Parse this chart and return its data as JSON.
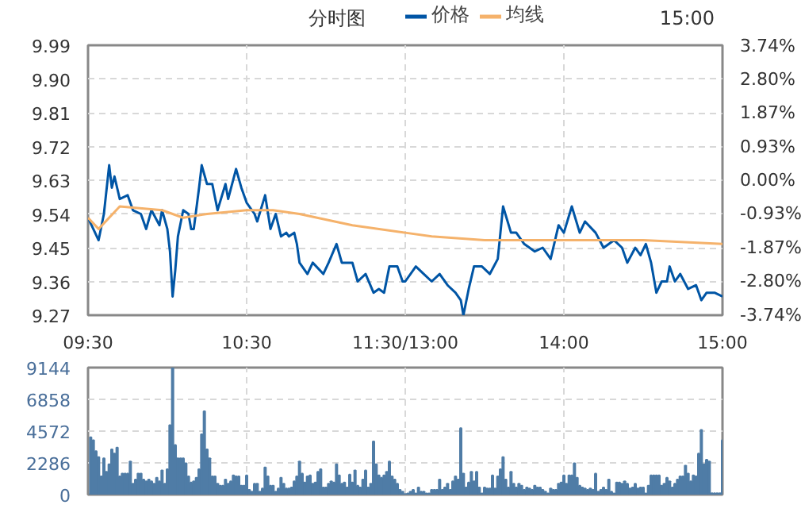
{
  "chart_data": [
    {
      "type": "line",
      "title": "分时图",
      "annotations": [
        "15:00"
      ],
      "legend": "top",
      "grid": true,
      "line_style": "solid",
      "marker": "none",
      "categories": [
        "09:30",
        null,
        null,
        null,
        null,
        null,
        null,
        null,
        null,
        null,
        null,
        null,
        null,
        null,
        null,
        null,
        null,
        null,
        null,
        null,
        null,
        null,
        null,
        null,
        null,
        null,
        null,
        null,
        null,
        null,
        null,
        null,
        null,
        null,
        null,
        null,
        null,
        null,
        null,
        null,
        null,
        null,
        null,
        null,
        null,
        null,
        null,
        null,
        null,
        null,
        null,
        null,
        null,
        null,
        null,
        null,
        null,
        null,
        null,
        null,
        "10:30",
        null,
        null,
        null,
        null,
        null,
        null,
        null,
        null,
        null,
        null,
        null,
        null,
        null,
        null,
        null,
        null,
        null,
        null,
        null,
        null,
        null,
        null,
        null,
        null,
        null,
        null,
        null,
        null,
        null,
        null,
        null,
        null,
        null,
        null,
        null,
        null,
        null,
        null,
        null,
        null,
        null,
        null,
        null,
        null,
        null,
        null,
        null,
        null,
        null,
        null,
        null,
        null,
        null,
        null,
        null,
        null,
        null,
        null,
        null,
        "11:30/13:00",
        null,
        null,
        null,
        null,
        null,
        null,
        null,
        null,
        null,
        null,
        null,
        null,
        null,
        null,
        null,
        null,
        null,
        null,
        null,
        null,
        null,
        null,
        null,
        null,
        null,
        null,
        null,
        null,
        null,
        null,
        null,
        null,
        null,
        null,
        null,
        null,
        null,
        null,
        null,
        null,
        null,
        null,
        null,
        null,
        null,
        null,
        null,
        null,
        null,
        null,
        null,
        null,
        null,
        null,
        null,
        null,
        null,
        null,
        null,
        "14:00",
        null,
        null,
        null,
        null,
        null,
        null,
        null,
        null,
        null,
        null,
        null,
        null,
        null,
        null,
        null,
        null,
        null,
        null,
        null,
        null,
        null,
        null,
        null,
        null,
        null,
        null,
        null,
        null,
        null,
        null,
        null,
        null,
        null,
        null,
        null,
        null,
        null,
        null,
        null,
        null,
        null,
        null,
        null,
        null,
        null,
        null,
        null,
        null,
        null,
        null,
        null,
        null,
        null,
        null,
        null,
        null,
        null,
        null,
        null,
        "15:00"
      ],
      "ylim": [
        9.27,
        9.99
      ],
      "yticks": [
        9.27,
        9.36,
        9.45,
        9.54,
        9.63,
        9.72,
        9.81,
        {
          "value": 9.9,
          "label": "9.90"
        },
        9.99
      ],
      "y2lim": [
        -3.74,
        3.74
      ],
      "y2ticks": [
        {
          "value": 3.74,
          "label": "3.74%"
        },
        {
          "value": 2.8,
          "label": "2.80%"
        },
        {
          "value": 1.87,
          "label": "1.87%"
        },
        {
          "value": 0.93,
          "label": "0.93%"
        },
        {
          "value": 0,
          "label": "0.00%"
        },
        {
          "value": -0.93,
          "label": "-0.93%"
        },
        {
          "value": -1.87,
          "label": "-1.87%"
        },
        {
          "value": -2.8,
          "label": "-2.80%"
        },
        {
          "value": -3.74,
          "label": "-3.74%"
        }
      ],
      "series": [
        {
          "name": "价格",
          "color": "#0055a5",
          "values": [
            9.53,
            null,
            null,
            null,
            9.47,
            null,
            9.54,
            null,
            9.67,
            9.61,
            9.64,
            null,
            9.58,
            null,
            null,
            9.59,
            null,
            9.55,
            null,
            null,
            9.54,
            null,
            9.5,
            null,
            9.55,
            null,
            null,
            9.51,
            9.55,
            null,
            9.5,
            9.44,
            9.32,
            9.39,
            9.48,
            null,
            9.55,
            null,
            9.54,
            9.5,
            9.5,
            null,
            9.61,
            9.67,
            null,
            9.62,
            null,
            9.62,
            null,
            9.55,
            null,
            null,
            9.62,
            9.58,
            null,
            null,
            9.66,
            null,
            9.61,
            null,
            9.57,
            null,
            null,
            9.54,
            9.52,
            null,
            null,
            9.59,
            null,
            9.5,
            null,
            9.54,
            null,
            9.48,
            null,
            9.49,
            9.48,
            null,
            9.49,
            9.46,
            9.41,
            null,
            null,
            9.38,
            null,
            9.41,
            null,
            null,
            null,
            9.38,
            null,
            9.41,
            null,
            null,
            9.46,
            null,
            9.41,
            null,
            null,
            null,
            9.41,
            null,
            9.36,
            null,
            null,
            9.38,
            null,
            null,
            9.33,
            null,
            9.34,
            null,
            9.33,
            null,
            9.4,
            null,
            null,
            9.4,
            null,
            9.36,
            9.36,
            null,
            null,
            null,
            9.4,
            null,
            null,
            9.38,
            null,
            null,
            9.36,
            null,
            null,
            9.38,
            null,
            null,
            9.35,
            null,
            null,
            9.33,
            null,
            9.31,
            9.27,
            null,
            9.34,
            null,
            9.4,
            null,
            null,
            9.4,
            null,
            null,
            9.38,
            null,
            null,
            9.42,
            9.49,
            9.56,
            null,
            null,
            9.49,
            null,
            9.49,
            null,
            null,
            9.46,
            null,
            null,
            null,
            9.44,
            null,
            null,
            9.45,
            null,
            null,
            9.42,
            null,
            9.48,
            9.51,
            null,
            9.49,
            null,
            null,
            9.56,
            null,
            null,
            9.49,
            null,
            9.52,
            null,
            null,
            null,
            9.49,
            null,
            null,
            9.45,
            null,
            null,
            null,
            9.47,
            null,
            null,
            9.45,
            null,
            9.41,
            null,
            null,
            9.45,
            null,
            9.43,
            null,
            9.46,
            null,
            9.41,
            null,
            9.33,
            null,
            9.36,
            null,
            9.36,
            9.4,
            null,
            9.36,
            null,
            9.38,
            null,
            null,
            9.34,
            null,
            null,
            9.35,
            null,
            9.31,
            null,
            9.33,
            null,
            null,
            9.33,
            null,
            null,
            9.32
          ]
        },
        {
          "name": "均线",
          "color": "#f5b26b",
          "values": [
            9.53,
            null,
            null,
            null,
            9.5,
            null,
            null,
            null,
            null,
            null,
            null,
            null,
            9.56,
            null,
            null,
            null,
            null,
            null,
            null,
            null,
            null,
            null,
            null,
            null,
            null,
            null,
            null,
            null,
            9.55,
            null,
            null,
            null,
            null,
            null,
            null,
            null,
            9.53,
            null,
            null,
            null,
            null,
            null,
            null,
            null,
            null,
            9.54,
            null,
            null,
            null,
            null,
            null,
            null,
            null,
            null,
            null,
            null,
            null,
            null,
            null,
            null,
            9.55,
            null,
            null,
            null,
            null,
            null,
            null,
            null,
            null,
            null,
            9.55,
            null,
            null,
            null,
            null,
            null,
            null,
            null,
            null,
            null,
            9.54,
            null,
            null,
            null,
            null,
            null,
            null,
            null,
            null,
            null,
            null,
            null,
            null,
            null,
            null,
            null,
            null,
            null,
            null,
            null,
            9.51,
            null,
            null,
            null,
            null,
            null,
            null,
            null,
            null,
            null,
            null,
            null,
            null,
            null,
            null,
            null,
            null,
            null,
            null,
            null,
            9.49,
            null,
            null,
            null,
            null,
            null,
            null,
            null,
            null,
            null,
            9.48,
            null,
            null,
            null,
            null,
            null,
            null,
            null,
            null,
            null,
            null,
            null,
            null,
            null,
            null,
            null,
            null,
            null,
            null,
            null,
            9.47,
            null,
            null,
            null,
            null,
            null,
            null,
            null,
            null,
            null,
            null,
            null,
            null,
            null,
            null,
            null,
            null,
            null,
            null,
            null,
            null,
            null,
            null,
            null,
            null,
            null,
            null,
            null,
            null,
            null,
            9.47,
            null,
            null,
            null,
            null,
            null,
            null,
            null,
            null,
            null,
            null,
            null,
            null,
            null,
            null,
            null,
            null,
            null,
            null,
            null,
            null,
            null,
            null,
            null,
            null,
            null,
            null,
            null,
            null,
            null,
            9.47,
            null,
            null,
            null,
            null,
            null,
            null,
            null,
            null,
            null,
            null,
            null,
            null,
            null,
            null,
            null,
            null,
            null,
            null,
            null,
            null,
            null,
            null,
            null,
            null,
            null,
            null,
            null,
            null,
            null,
            9.46
          ]
        }
      ]
    },
    {
      "type": "bar",
      "grid": true,
      "tick_labels": "y",
      "categories": [
        null,
        null,
        null,
        null,
        null,
        null,
        null,
        null,
        null,
        null,
        null,
        null,
        null,
        null,
        null,
        null,
        null,
        null,
        null,
        null,
        null,
        null,
        null,
        null,
        null,
        null,
        null,
        null,
        null,
        null,
        null,
        null,
        null,
        null,
        null,
        null,
        null,
        null,
        null,
        null,
        null,
        null,
        null,
        null,
        null,
        null,
        null,
        null,
        null,
        null,
        null,
        null,
        null,
        null,
        null,
        null,
        null,
        null,
        null,
        null,
        null,
        null,
        null,
        null,
        null,
        null,
        null,
        null,
        null,
        null,
        null,
        null,
        null,
        null,
        null,
        null,
        null,
        null,
        null,
        null,
        null,
        null,
        null,
        null,
        null,
        null,
        null,
        null,
        null,
        null,
        null,
        null,
        null,
        null,
        null,
        null,
        null,
        null,
        null,
        null,
        null,
        null,
        null,
        null,
        null,
        null,
        null,
        null,
        null,
        null,
        null,
        null,
        null,
        null,
        null,
        null,
        null,
        null,
        null,
        null,
        null,
        null,
        null,
        null,
        null,
        null,
        null,
        null,
        null,
        null,
        null,
        null,
        null,
        null,
        null,
        null,
        null,
        null,
        null,
        null,
        null,
        null,
        null,
        null,
        null,
        null,
        null,
        null,
        null,
        null,
        null,
        null,
        null,
        null,
        null,
        null,
        null,
        null,
        null,
        null,
        null,
        null,
        null,
        null,
        null,
        null,
        null,
        null,
        null,
        null,
        null,
        null,
        null,
        null,
        null,
        null,
        null,
        null,
        null,
        null,
        null,
        null,
        null,
        null,
        null,
        null,
        null,
        null,
        null,
        null,
        null,
        null,
        null,
        null,
        null,
        null,
        null,
        null,
        null,
        null,
        null,
        null,
        null,
        null,
        null,
        null,
        null,
        null,
        null,
        null,
        null,
        null,
        null,
        null,
        null,
        null,
        null,
        null,
        null,
        null,
        null,
        null,
        null,
        null,
        null,
        null,
        null,
        null,
        null,
        null,
        null,
        null,
        null,
        null,
        null,
        null,
        null,
        null,
        null,
        null,
        null
      ],
      "ylim": [
        0,
        9144
      ],
      "yticks": [
        0,
        2286,
        4572,
        6858,
        9144
      ],
      "series": [
        {
          "color": "#4f7ca6",
          "values": [
            null,
            4130,
            3920,
            3130,
            2700,
            1310,
            2610,
            1650,
            2180,
            3260,
            2960,
            3390,
            1310,
            1520,
            1520,
            1520,
            2390,
            780,
            1090,
            1520,
            1520,
            1090,
            960,
            1090,
            960,
            780,
            1220,
            960,
            1740,
            780,
            1830,
            5000,
            9144,
            3570,
            2610,
            2610,
            2610,
            2260,
            1310,
            870,
            960,
            1220,
            1830,
            4350,
            6000,
            3260,
            2610,
            1310,
            1310,
            780,
            650,
            650,
            1090,
            780,
            960,
            1390,
            1310,
            1310,
            650,
            650,
            1390,
            350,
            220,
            780,
            780,
            220,
            440,
            1960,
            1310,
            650,
            650,
            220,
            440,
            1220,
            780,
            440,
            440,
            520,
            960,
            1310,
            2390,
            1520,
            870,
            1310,
            1390,
            780,
            870,
            1650,
            1830,
            520,
            520,
            780,
            960,
            870,
            2180,
            1390,
            780,
            870,
            520,
            1440,
            870,
            1740,
            650,
            520,
            1090,
            1740,
            520,
            780,
            3830,
            2180,
            1390,
            1220,
            1390,
            1650,
            2390,
            1310,
            1090,
            780,
            350,
            220,
            50,
            90,
            220,
            350,
            90,
            520,
            220,
            220,
            90,
            90,
            350,
            350,
            350,
            1090,
            350,
            520,
            780,
            350,
            960,
            1310,
            1090,
            4790,
            1520,
            520,
            870,
            1650,
            960,
            1650,
            520,
            90,
            520,
            440,
            440,
            1390,
            440,
            1310,
            1830,
            2700,
            1090,
            520,
            1650,
            780,
            520,
            780,
            650,
            350,
            520,
            440,
            350,
            650,
            520,
            520,
            350,
            220,
            90,
            440,
            350,
            350,
            780,
            870,
            1390,
            780,
            1390,
            1390,
            2260,
            1220,
            650,
            520,
            440,
            350,
            440,
            350,
            1520,
            220,
            350,
            520,
            350,
            1090,
            220,
            90,
            870,
            870,
            780,
            960,
            780,
            440,
            520,
            780,
            440,
            520,
            520,
            90,
            650,
            1390,
            1390,
            1390,
            1390,
            650,
            780,
            1220,
            960,
            520,
            780,
            1090,
            1310,
            1310,
            2090,
            1520,
            960,
            1390,
            1310,
            2960,
            4660,
            2180,
            2520,
            2390,
            100,
            100,
            100,
            100,
            3920
          ]
        }
      ]
    }
  ]
}
